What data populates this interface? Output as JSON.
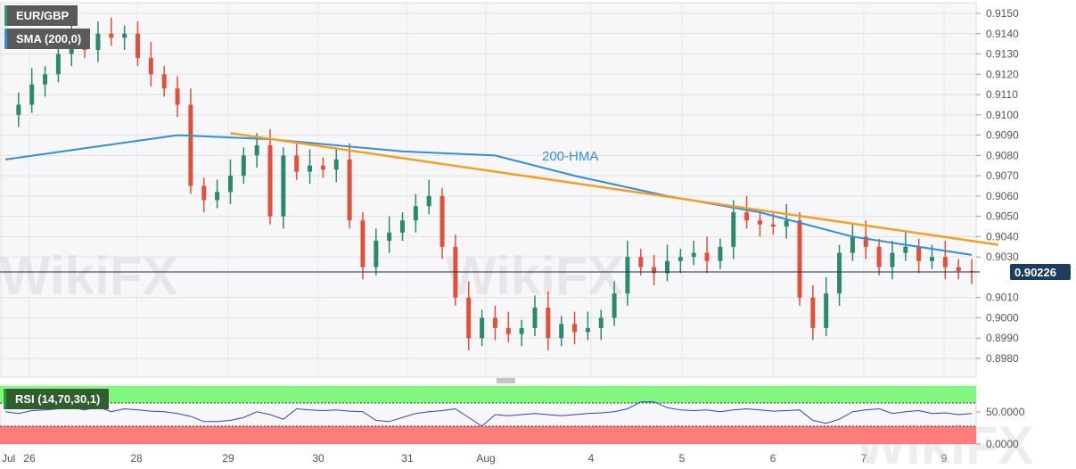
{
  "chart_data": {
    "type": "candlestick",
    "symbol": "EUR/GBP",
    "indicator_label": "SMA (200,0)",
    "annotation": "200-HMA",
    "current_price": "0.90226",
    "y_ticks": [
      "0.9150",
      "0.9140",
      "0.9130",
      "0.9120",
      "0.9110",
      "0.9100",
      "0.9090",
      "0.9080",
      "0.9070",
      "0.9060",
      "0.9050",
      "0.9040",
      "0.9030",
      "0.9010",
      "0.9000",
      "0.8990",
      "0.8980"
    ],
    "ylim": [
      0.8974,
      0.9156
    ],
    "x_ticks": [
      "Jul",
      "26",
      "28",
      "29",
      "30",
      "31",
      "Aug",
      "4",
      "5",
      "6",
      "7",
      "9"
    ],
    "closes": [
      0.91,
      0.9105,
      0.9115,
      0.912,
      0.913,
      0.9138,
      0.9132,
      0.914,
      0.9138,
      0.914,
      0.9128,
      0.912,
      0.9113,
      0.9105,
      0.9065,
      0.9058,
      0.9062,
      0.907,
      0.908,
      0.9085,
      0.905,
      0.908,
      0.9072,
      0.9075,
      0.9073,
      0.9078,
      0.9048,
      0.9025,
      0.9038,
      0.9042,
      0.9048,
      0.9055,
      0.906,
      0.9035,
      0.901,
      0.899,
      0.9,
      0.8995,
      0.8992,
      0.8995,
      0.9005,
      0.899,
      0.8997,
      0.8993,
      0.8995,
      0.9,
      0.9012,
      0.903,
      0.9025,
      0.9022,
      0.9028,
      0.903,
      0.9032,
      0.9028,
      0.9035,
      0.9052,
      0.9048,
      0.9046,
      0.9045,
      0.9048,
      0.901,
      0.8995,
      0.9012,
      0.9032,
      0.904,
      0.9035,
      0.9025,
      0.9032,
      0.9035,
      0.9028,
      0.903,
      0.9025,
      0.9023,
      0.90226
    ],
    "hma": [
      [
        0,
        0.9078
      ],
      [
        13,
        0.909
      ],
      [
        20,
        0.9088
      ],
      [
        30,
        0.9082
      ],
      [
        37,
        0.908
      ],
      [
        43,
        0.907
      ],
      [
        50,
        0.906
      ],
      [
        57,
        0.9052
      ],
      [
        64,
        0.904
      ],
      [
        73,
        0.9031
      ]
    ],
    "trendline": [
      [
        17,
        0.9091
      ],
      [
        75,
        0.9036
      ]
    ],
    "rsi": {
      "label": "RSI (14,70,30,1)",
      "ticks": [
        "50.0000",
        "0.0000"
      ],
      "levels": [
        70,
        30
      ],
      "values": [
        55,
        52,
        57,
        58,
        60,
        62,
        58,
        63,
        55,
        60,
        58,
        56,
        55,
        52,
        47,
        38,
        38,
        40,
        45,
        55,
        50,
        42,
        60,
        58,
        57,
        58,
        56,
        55,
        40,
        38,
        45,
        52,
        55,
        57,
        60,
        45,
        30,
        50,
        48,
        50,
        52,
        50,
        48,
        50,
        52,
        53,
        55,
        60,
        72,
        72,
        62,
        58,
        57,
        58,
        55,
        58,
        60,
        58,
        56,
        57,
        58,
        40,
        35,
        42,
        55,
        58,
        60,
        52,
        55,
        57,
        52,
        53,
        50,
        52
      ]
    },
    "colors": {
      "up": "#2a8a6a",
      "down": "#e0503a",
      "hma": "#2f8fe0",
      "trend": "#f5a020",
      "rsi": "#3040d0",
      "ob": "#80f880",
      "os": "#ff7c7c"
    }
  }
}
